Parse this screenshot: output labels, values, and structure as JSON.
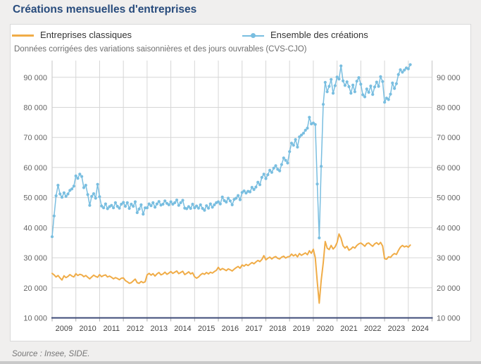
{
  "page": {
    "title": "Créations mensuelles d'entreprises"
  },
  "footer": {
    "source": "Source : Insee, SIDE."
  },
  "colors": {
    "title": "#274b7c",
    "axis_bottom": "#3e4b78",
    "grid": "#d6d6d6",
    "axis_side": "#c6c6c6",
    "tick_text": "#666666",
    "year_text": "#454545",
    "page_bg": "#f0efee",
    "card_border": "#d9d9d9",
    "strip": "#c9c9c9"
  },
  "chart_data": {
    "type": "line",
    "title": "Créations mensuelles d'entreprises",
    "subtitle": "Données corrigées des variations saisonnières et des jours ouvrables (CVS-CJO)",
    "source": "Source : Insee, SIDE.",
    "x_unit": "month",
    "x_start": "2009-01",
    "x_end": "2024-02",
    "x_tick_labels": [
      "2009",
      "2010",
      "2011",
      "2012",
      "2013",
      "2014",
      "2015",
      "2016",
      "2017",
      "2018",
      "2019",
      "2020",
      "2021",
      "2022",
      "2023",
      "2024"
    ],
    "y_ticks": [
      {
        "value": 10000,
        "label": "10 000"
      },
      {
        "value": 20000,
        "label": "20 000"
      },
      {
        "value": 30000,
        "label": "30 000"
      },
      {
        "value": 40000,
        "label": "40 000"
      },
      {
        "value": 50000,
        "label": "50 000"
      },
      {
        "value": 60000,
        "label": "60 000"
      },
      {
        "value": 70000,
        "label": "70 000"
      },
      {
        "value": 80000,
        "label": "80 000"
      },
      {
        "value": 90000,
        "label": "90 000"
      }
    ],
    "ylim": [
      10000,
      95100
    ],
    "grid": true,
    "legend_position": "top",
    "dual_y_axis": true,
    "series": [
      {
        "name": "Entreprises classiques",
        "color": "#f0ac47",
        "marker": "none",
        "values": [
          24800,
          24300,
          23600,
          24100,
          23300,
          22600,
          24000,
          23400,
          23800,
          24400,
          23900,
          23600,
          24700,
          24100,
          24500,
          24300,
          23700,
          24100,
          23500,
          23000,
          23600,
          24200,
          23800,
          23500,
          24400,
          23700,
          24100,
          24300,
          23600,
          23900,
          23500,
          23000,
          23400,
          23100,
          22700,
          23200,
          23300,
          22400,
          22000,
          21500,
          21700,
          22300,
          22900,
          21700,
          21500,
          22100,
          21700,
          22000,
          24300,
          24800,
          24200,
          24700,
          23900,
          24600,
          25100,
          24300,
          24600,
          25200,
          24500,
          24900,
          25400,
          24800,
          25200,
          25600,
          24700,
          25100,
          25500,
          24400,
          24800,
          25300,
          24600,
          25000,
          23700,
          23200,
          23600,
          24300,
          24800,
          24500,
          25100,
          24600,
          25200,
          24900,
          25400,
          25800,
          26800,
          25900,
          26400,
          26100,
          25700,
          26300,
          26000,
          25600,
          26200,
          26700,
          27100,
          26500,
          27600,
          27200,
          27800,
          27400,
          27900,
          28400,
          28000,
          28600,
          29100,
          28700,
          29400,
          30700,
          29300,
          29800,
          30200,
          29600,
          30100,
          30400,
          29800,
          29600,
          30200,
          30500,
          29900,
          30300,
          30400,
          31200,
          30600,
          31100,
          30300,
          31400,
          30800,
          31200,
          31600,
          31000,
          32300,
          31500,
          32800,
          30000,
          22000,
          14900,
          22500,
          28300,
          35400,
          33200,
          32700,
          34100,
          32900,
          33600,
          35000,
          37900,
          36500,
          34000,
          33200,
          33800,
          32500,
          32900,
          33600,
          33200,
          34100,
          34600,
          34900,
          34400,
          33800,
          34700,
          34900,
          34300,
          33800,
          34600,
          35000,
          34400,
          35100,
          33900,
          29700,
          29500,
          30300,
          30100,
          30900,
          31400,
          31100,
          32400,
          33500,
          34100,
          33600,
          33900,
          33500,
          34200
        ]
      },
      {
        "name": "Ensemble des créations",
        "color": "#79bee0",
        "marker": "circle",
        "values": [
          37000,
          43900,
          50600,
          54100,
          51200,
          50100,
          51600,
          50400,
          51200,
          52400,
          52900,
          53800,
          57200,
          56400,
          57800,
          57000,
          53300,
          54100,
          51000,
          47400,
          50400,
          51300,
          49800,
          54400,
          50300,
          47200,
          46600,
          47900,
          46300,
          47000,
          47400,
          46600,
          48300,
          47100,
          46500,
          47800,
          48400,
          47100,
          48300,
          46400,
          47800,
          47100,
          48600,
          45000,
          46200,
          47600,
          44500,
          46600,
          46600,
          47900,
          47300,
          48300,
          46800,
          47900,
          48700,
          47500,
          47800,
          48900,
          48100,
          47600,
          48600,
          47800,
          48300,
          49200,
          47400,
          48300,
          49100,
          46500,
          46300,
          47000,
          46400,
          47800,
          46600,
          47200,
          46500,
          47600,
          46400,
          45800,
          47300,
          46500,
          47900,
          46800,
          47600,
          48300,
          48600,
          47900,
          50200,
          49000,
          48500,
          49800,
          48900,
          47600,
          49400,
          49800,
          50700,
          49300,
          51700,
          52200,
          51500,
          52100,
          51900,
          53400,
          52700,
          53500,
          55100,
          54300,
          56700,
          57800,
          56300,
          57600,
          59100,
          58400,
          59800,
          60600,
          59400,
          58900,
          61000,
          63200,
          62400,
          61500,
          65300,
          68100,
          67400,
          69300,
          66800,
          70200,
          70800,
          71400,
          72400,
          73100,
          76700,
          74500,
          74800,
          74300,
          54500,
          36600,
          60400,
          81000,
          88300,
          85200,
          87000,
          89300,
          84700,
          87200,
          90100,
          89400,
          93800,
          88800,
          87300,
          88500,
          86900,
          84700,
          87400,
          85200,
          88700,
          89900,
          87700,
          84200,
          83500,
          86100,
          85000,
          87100,
          84300,
          86800,
          88400,
          87000,
          90200,
          88600,
          81700,
          83100,
          82600,
          84400,
          88100,
          86300,
          87900,
          90900,
          92500,
          91700,
          92400,
          93100,
          92800,
          94200
        ]
      }
    ]
  }
}
